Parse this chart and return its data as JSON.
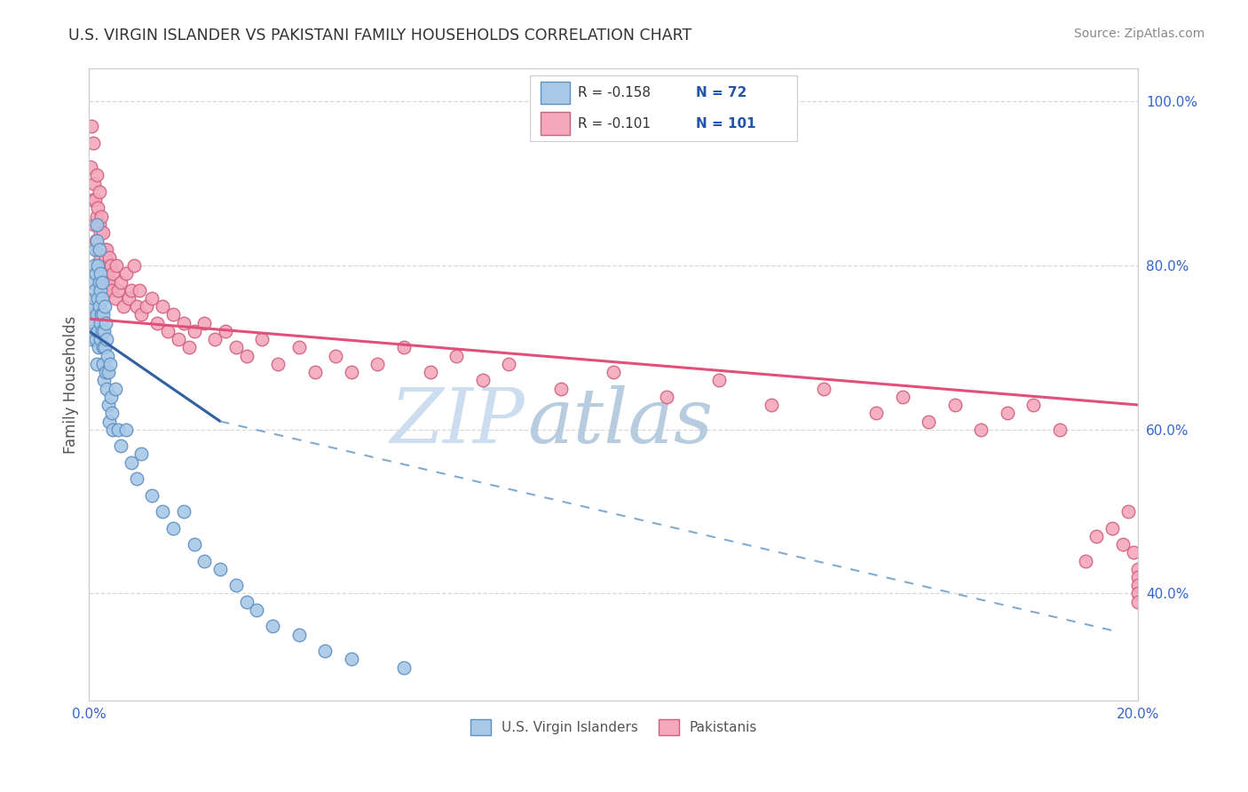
{
  "title": "U.S. VIRGIN ISLANDER VS PAKISTANI FAMILY HOUSEHOLDS CORRELATION CHART",
  "source": "Source: ZipAtlas.com",
  "ylabel": "Family Households",
  "legend_blue_label": "U.S. Virgin Islanders",
  "legend_pink_label": "Pakistanis",
  "R_blue": -0.158,
  "N_blue": 72,
  "R_pink": -0.101,
  "N_pink": 101,
  "blue_color": "#a8c8e8",
  "pink_color": "#f4a8bc",
  "blue_edge": "#6090c0",
  "pink_edge": "#d06080",
  "trendline_blue_solid": "#3060a0",
  "trendline_blue_dash": "#80aad0",
  "trendline_pink_color": "#e0507a",
  "watermark_zip": "#c8ddf0",
  "watermark_atlas": "#b0c8e0",
  "background_color": "#ffffff",
  "grid_color": "#d8d8d8",
  "xmin": 0.0,
  "xmax": 0.2,
  "ymin": 0.27,
  "ymax": 1.04,
  "right_ytick_vals": [
    1.0,
    0.8,
    0.6,
    0.4
  ],
  "right_ytick_labels": [
    "100.0%",
    "80.0%",
    "60.0%",
    "40.0%"
  ],
  "legend_text_color": "#2255aa",
  "blue_x": [
    0.0003,
    0.0005,
    0.0005,
    0.0007,
    0.0008,
    0.0009,
    0.001,
    0.001,
    0.0012,
    0.0012,
    0.0013,
    0.0013,
    0.0014,
    0.0014,
    0.0015,
    0.0015,
    0.0016,
    0.0017,
    0.0017,
    0.0018,
    0.0019,
    0.002,
    0.002,
    0.0021,
    0.0021,
    0.0022,
    0.0022,
    0.0023,
    0.0024,
    0.0025,
    0.0025,
    0.0026,
    0.0027,
    0.0027,
    0.0028,
    0.0029,
    0.003,
    0.003,
    0.0031,
    0.0032,
    0.0033,
    0.0034,
    0.0035,
    0.0036,
    0.0037,
    0.0038,
    0.004,
    0.0041,
    0.0043,
    0.0045,
    0.005,
    0.0055,
    0.006,
    0.007,
    0.008,
    0.009,
    0.01,
    0.012,
    0.014,
    0.016,
    0.018,
    0.02,
    0.022,
    0.025,
    0.028,
    0.03,
    0.032,
    0.035,
    0.04,
    0.045,
    0.05,
    0.06
  ],
  "blue_y": [
    0.72,
    0.74,
    0.71,
    0.75,
    0.78,
    0.73,
    0.8,
    0.76,
    0.82,
    0.77,
    0.71,
    0.79,
    0.83,
    0.68,
    0.85,
    0.74,
    0.72,
    0.8,
    0.76,
    0.7,
    0.78,
    0.82,
    0.75,
    0.79,
    0.73,
    0.77,
    0.71,
    0.74,
    0.78,
    0.72,
    0.76,
    0.7,
    0.74,
    0.68,
    0.72,
    0.66,
    0.75,
    0.7,
    0.73,
    0.67,
    0.71,
    0.65,
    0.69,
    0.63,
    0.67,
    0.61,
    0.68,
    0.64,
    0.62,
    0.6,
    0.65,
    0.6,
    0.58,
    0.6,
    0.56,
    0.54,
    0.57,
    0.52,
    0.5,
    0.48,
    0.5,
    0.46,
    0.44,
    0.43,
    0.41,
    0.39,
    0.38,
    0.36,
    0.35,
    0.33,
    0.32,
    0.31
  ],
  "pink_x": [
    0.0003,
    0.0005,
    0.0007,
    0.0008,
    0.001,
    0.001,
    0.0012,
    0.0013,
    0.0014,
    0.0015,
    0.0016,
    0.0017,
    0.0018,
    0.0019,
    0.002,
    0.002,
    0.0021,
    0.0022,
    0.0023,
    0.0024,
    0.0025,
    0.0026,
    0.0027,
    0.0028,
    0.003,
    0.003,
    0.0031,
    0.0032,
    0.0033,
    0.0035,
    0.0036,
    0.0037,
    0.0038,
    0.004,
    0.0041,
    0.0043,
    0.0045,
    0.005,
    0.0052,
    0.0055,
    0.006,
    0.0065,
    0.007,
    0.0075,
    0.008,
    0.0085,
    0.009,
    0.0095,
    0.01,
    0.011,
    0.012,
    0.013,
    0.014,
    0.015,
    0.016,
    0.017,
    0.018,
    0.019,
    0.02,
    0.022,
    0.024,
    0.026,
    0.028,
    0.03,
    0.033,
    0.036,
    0.04,
    0.043,
    0.047,
    0.05,
    0.055,
    0.06,
    0.065,
    0.07,
    0.075,
    0.08,
    0.09,
    0.1,
    0.11,
    0.12,
    0.13,
    0.14,
    0.15,
    0.155,
    0.16,
    0.165,
    0.17,
    0.175,
    0.18,
    0.185,
    0.19,
    0.192,
    0.195,
    0.197,
    0.198,
    0.199,
    0.2,
    0.2,
    0.2,
    0.2,
    0.2
  ],
  "pink_y": [
    0.92,
    0.97,
    0.88,
    0.95,
    0.9,
    0.85,
    0.88,
    0.83,
    0.91,
    0.86,
    0.82,
    0.87,
    0.8,
    0.85,
    0.89,
    0.78,
    0.84,
    0.81,
    0.86,
    0.78,
    0.82,
    0.8,
    0.84,
    0.79,
    0.82,
    0.77,
    0.81,
    0.78,
    0.82,
    0.79,
    0.8,
    0.77,
    0.81,
    0.78,
    0.8,
    0.77,
    0.79,
    0.76,
    0.8,
    0.77,
    0.78,
    0.75,
    0.79,
    0.76,
    0.77,
    0.8,
    0.75,
    0.77,
    0.74,
    0.75,
    0.76,
    0.73,
    0.75,
    0.72,
    0.74,
    0.71,
    0.73,
    0.7,
    0.72,
    0.73,
    0.71,
    0.72,
    0.7,
    0.69,
    0.71,
    0.68,
    0.7,
    0.67,
    0.69,
    0.67,
    0.68,
    0.7,
    0.67,
    0.69,
    0.66,
    0.68,
    0.65,
    0.67,
    0.64,
    0.66,
    0.63,
    0.65,
    0.62,
    0.64,
    0.61,
    0.63,
    0.6,
    0.62,
    0.63,
    0.6,
    0.44,
    0.47,
    0.48,
    0.46,
    0.5,
    0.45,
    0.43,
    0.42,
    0.41,
    0.4,
    0.39
  ]
}
